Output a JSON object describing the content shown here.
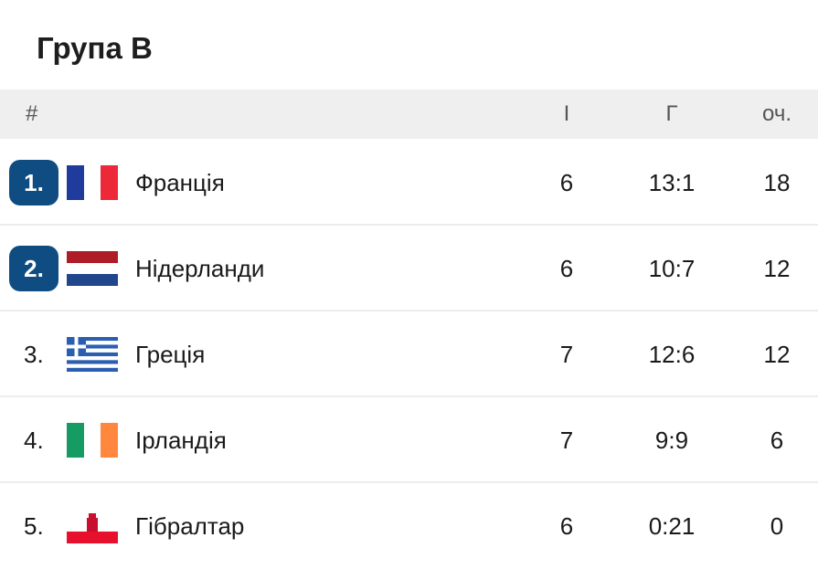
{
  "title": "Група B",
  "header": {
    "pos": "#",
    "played": "І",
    "goals": "Г",
    "points": "оч."
  },
  "colors": {
    "badge": "#0f4c81",
    "header_bg": "#efefef"
  },
  "rows": [
    {
      "pos": "1.",
      "team": "Франція",
      "flag": "france-flag",
      "played": "6",
      "goals": "13:1",
      "points": "18",
      "highlight": true
    },
    {
      "pos": "2.",
      "team": "Нідерланди",
      "flag": "netherlands-flag",
      "played": "6",
      "goals": "10:7",
      "points": "12",
      "highlight": true
    },
    {
      "pos": "3.",
      "team": "Греція",
      "flag": "greece-flag",
      "played": "7",
      "goals": "12:6",
      "points": "12",
      "highlight": false
    },
    {
      "pos": "4.",
      "team": "Ірландія",
      "flag": "ireland-flag",
      "played": "7",
      "goals": "9:9",
      "points": "6",
      "highlight": false
    },
    {
      "pos": "5.",
      "team": "Гібралтар",
      "flag": "gibraltar-flag",
      "played": "6",
      "goals": "0:21",
      "points": "0",
      "highlight": false
    }
  ]
}
